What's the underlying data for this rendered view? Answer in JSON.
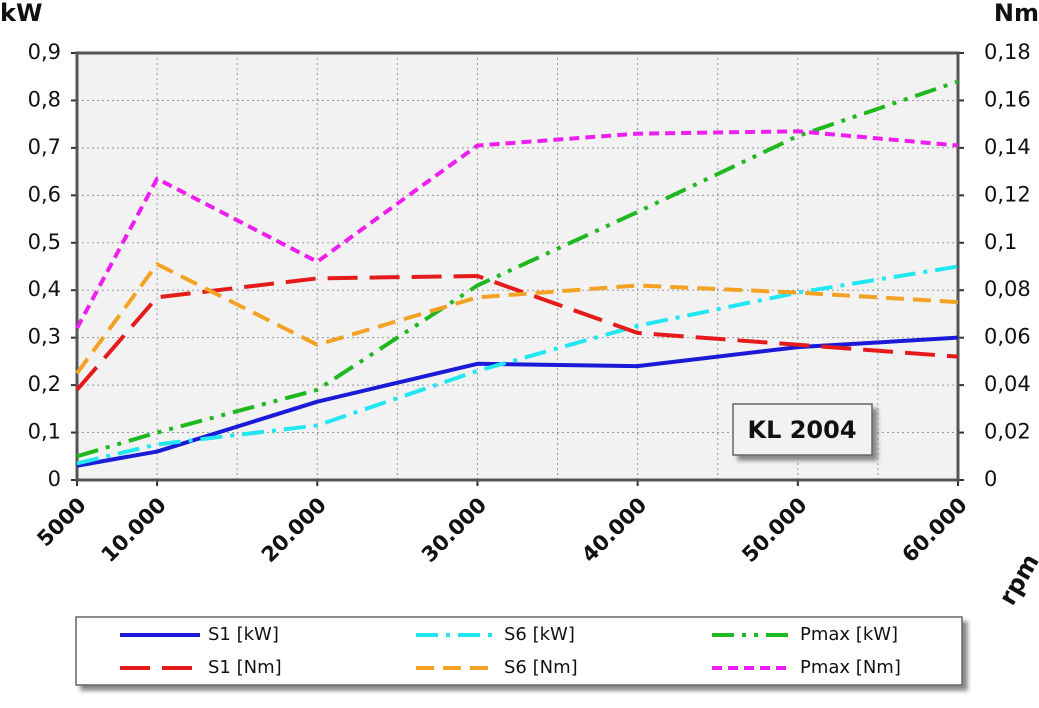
{
  "chart_data": {
    "type": "line",
    "y_label": "kW",
    "y2_label": "Nm",
    "x_label": "rpm",
    "annotation": "KL 2004",
    "x": [
      5000,
      10000,
      20000,
      30000,
      40000,
      50000,
      60000
    ],
    "xlim": [
      5000,
      60000
    ],
    "xticks": [
      5000,
      {
        "value": 10000,
        "label": "10.000"
      },
      {
        "value": 20000,
        "label": "20.000"
      },
      {
        "value": 30000,
        "label": "30.000"
      },
      {
        "value": 40000,
        "label": "40.000"
      },
      {
        "value": 50000,
        "label": "50.000"
      },
      {
        "value": 60000,
        "label": "60.000"
      }
    ],
    "xgrid": [
      5000,
      10000,
      15000,
      20000,
      25000,
      30000,
      35000,
      40000,
      45000,
      50000,
      55000,
      60000
    ],
    "ylim": [
      0,
      0.9
    ],
    "yticks": [
      0,
      {
        "value": 0.1,
        "label": "0,1"
      },
      {
        "value": 0.2,
        "label": "0,2"
      },
      {
        "value": 0.3,
        "label": "0,3"
      },
      {
        "value": 0.4,
        "label": "0,4"
      },
      {
        "value": 0.5,
        "label": "0,5"
      },
      {
        "value": 0.6,
        "label": "0,6"
      },
      {
        "value": 0.7,
        "label": "0,7"
      },
      {
        "value": 0.8,
        "label": "0,8"
      },
      {
        "value": 0.9,
        "label": "0,9"
      }
    ],
    "y2lim": [
      0,
      0.18
    ],
    "y2ticks": [
      0,
      {
        "value": 0.02,
        "label": "0,02"
      },
      {
        "value": 0.04,
        "label": "0,04"
      },
      {
        "value": 0.06,
        "label": "0,06"
      },
      {
        "value": 0.08,
        "label": "0,08"
      },
      {
        "value": 0.1,
        "label": "0,1"
      },
      {
        "value": 0.12,
        "label": "0,12"
      },
      {
        "value": 0.14,
        "label": "0,14"
      },
      {
        "value": 0.16,
        "label": "0,16"
      },
      {
        "value": 0.18,
        "label": "0,18"
      }
    ],
    "grid": true,
    "legend": "bottom",
    "series": [
      {
        "name": "S1 [kW]",
        "color": "#1a1ad8",
        "dash": "solid",
        "values": [
          0.03,
          0.06,
          0.165,
          0.245,
          0.24,
          0.28,
          0.3
        ]
      },
      {
        "name": "S6 [kW]",
        "color": "#22e6f2",
        "dash": "dashdot",
        "values": [
          0.035,
          0.075,
          0.115,
          0.23,
          0.325,
          0.395,
          0.45
        ]
      },
      {
        "name": "Pmax [kW]",
        "color": "#1fb81f",
        "dash": "dashdotdot",
        "values": [
          0.05,
          0.1,
          0.19,
          0.41,
          0.565,
          0.725,
          0.84
        ]
      },
      {
        "name": "S1 [Nm]",
        "color": "#e51b1b",
        "dash": "longdash",
        "axis": "y2",
        "values": [
          0.038,
          0.077,
          0.085,
          0.086,
          0.062,
          0.057,
          0.052
        ]
      },
      {
        "name": "S6 [Nm]",
        "color": "#f4a223",
        "dash": "dash",
        "axis": "y2",
        "values": [
          0.045,
          0.091,
          0.057,
          0.077,
          0.082,
          0.079,
          0.075
        ]
      },
      {
        "name": "Pmax [Nm]",
        "color": "#ee1eee",
        "dash": "shortdash",
        "axis": "y2",
        "values": [
          0.064,
          0.127,
          0.092,
          0.141,
          0.146,
          0.147,
          0.141
        ]
      }
    ]
  }
}
